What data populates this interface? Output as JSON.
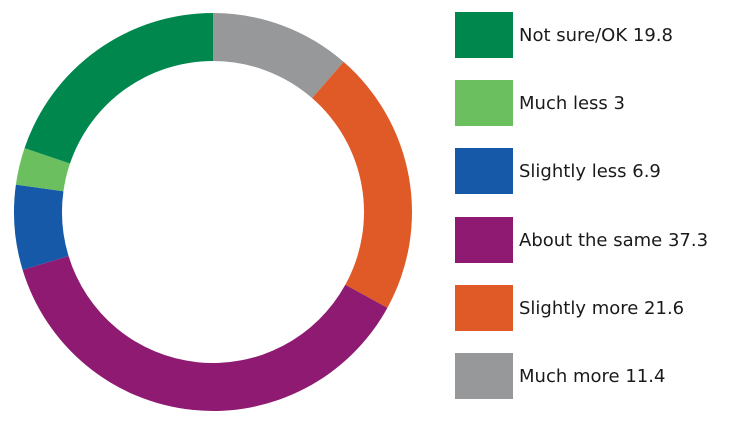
{
  "chart_data": {
    "type": "pie",
    "title": "",
    "series": [
      {
        "name": "Not sure/OK",
        "value": 19.8,
        "color": "#00874E",
        "label": "Not sure/OK 19.8"
      },
      {
        "name": "Much less",
        "value": 3,
        "color": "#6CBF5F",
        "label": "Much less 3"
      },
      {
        "name": "Slightly less",
        "value": 6.9,
        "color": "#1659A8",
        "label": "Slightly less 6.9"
      },
      {
        "name": "About the same",
        "value": 37.3,
        "color": "#8E1A72",
        "label": "About the same 37.3"
      },
      {
        "name": "Slightly more",
        "value": 21.6,
        "color": "#E05A28",
        "label": "Slightly more 21.6"
      },
      {
        "name": "Much more",
        "value": 11.4,
        "color": "#96989A",
        "label": "Much more 11.4"
      }
    ],
    "slice_order_clockwise_from_top": [
      "Much more",
      "Slightly more",
      "About the same",
      "Slightly less",
      "Much less",
      "Not sure/OK"
    ],
    "legend_position": "right"
  }
}
